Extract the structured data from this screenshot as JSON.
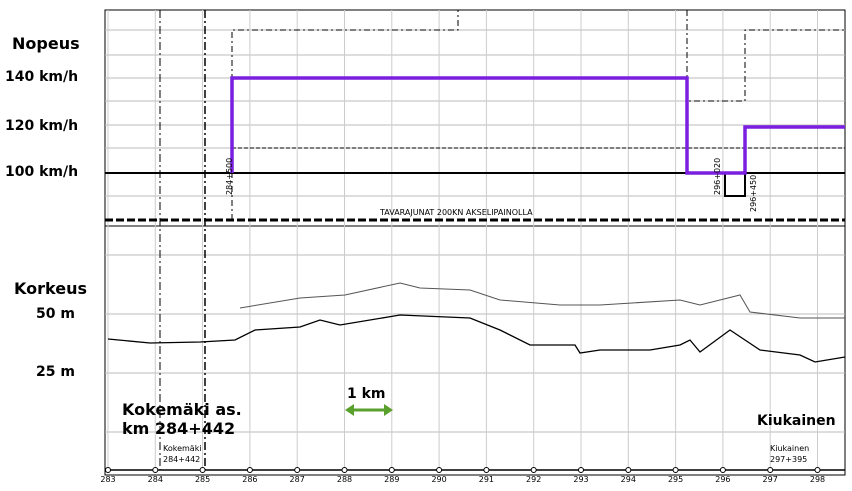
{
  "labels": {
    "speed_title": "Nopeus",
    "speed_140": "140 km/h",
    "speed_120": "120 km/h",
    "speed_100": "100 km/h",
    "height_title": "Korkeus",
    "height_50": "50 m",
    "height_25": "25 m",
    "start_station": "Kokemäki as.",
    "start_km": "km 284+442",
    "scale": "1 km",
    "end_station": "Kiukainen"
  },
  "markers": {
    "change_1": "284+500",
    "change_2": "296+020",
    "change_3": "296+450",
    "freight_note": "TAVARAJUNAT 200KN AKSELIPAINOLLA"
  },
  "stations": [
    {
      "name": "Kokemäki",
      "km": "284+442"
    },
    {
      "name": "Kiukainen",
      "km": "297+395"
    }
  ],
  "km_axis": [
    "283",
    "284",
    "285",
    "286",
    "287",
    "288",
    "289",
    "290",
    "291",
    "292",
    "293",
    "294",
    "295",
    "296",
    "297",
    "298"
  ]
}
